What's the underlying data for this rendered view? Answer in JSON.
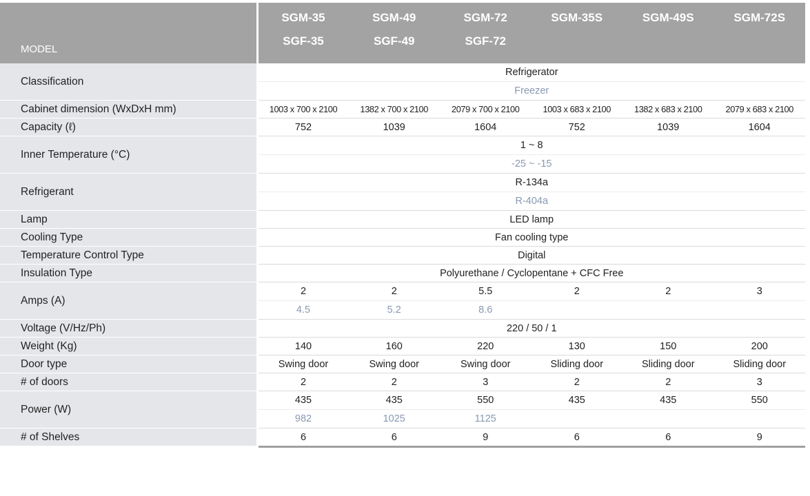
{
  "header": {
    "label": "MODEL",
    "models": [
      "SGM-35",
      "SGM-49",
      "SGM-72",
      "SGM-35S",
      "SGM-49S",
      "SGM-72S"
    ],
    "sub_models": [
      "SGF-35",
      "SGF-49",
      "SGF-72"
    ]
  },
  "rows": {
    "classification": {
      "label": "Classification",
      "refrigerator": "Refrigerator",
      "freezer": "Freezer"
    },
    "cabinet": {
      "label": "Cabinet dimension (WxDxH mm)",
      "values": [
        "1003 x 700 x 2100",
        "1382 x 700 x 2100",
        "2079 x 700 x 2100",
        "1003 x 683 x 2100",
        "1382 x 683 x 2100",
        "2079 x 683 x 2100"
      ]
    },
    "capacity": {
      "label": "Capacity (ℓ)",
      "values": [
        "752",
        "1039",
        "1604",
        "752",
        "1039",
        "1604"
      ]
    },
    "inner_temp": {
      "label": "Inner Temperature (°C)",
      "refrigerator": "1 ~ 8",
      "freezer": "-25 ~ -15"
    },
    "refrigerant": {
      "label": "Refrigerant",
      "refrigerator": "R-134a",
      "freezer": "R-404a"
    },
    "lamp": {
      "label": "Lamp",
      "value": "LED lamp"
    },
    "cooling": {
      "label": "Cooling Type",
      "value": "Fan cooling type"
    },
    "temp_control": {
      "label": "Temperature Control Type",
      "value": "Digital"
    },
    "insulation": {
      "label": "Insulation Type",
      "value": "Polyurethane / Cyclopentane + CFC Free"
    },
    "amps": {
      "label": "Amps (A)",
      "values": [
        "2",
        "2",
        "5.5",
        "2",
        "2",
        "3"
      ],
      "freezer_values": [
        "4.5",
        "5.2",
        "8.6"
      ]
    },
    "voltage": {
      "label": "Voltage (V/Hz/Ph)",
      "value": "220 / 50 / 1"
    },
    "weight": {
      "label": "Weight (Kg)",
      "values": [
        "140",
        "160",
        "220",
        "130",
        "150",
        "200"
      ]
    },
    "door_type": {
      "label": "Door type",
      "values": [
        "Swing door",
        "Swing door",
        "Swing door",
        "Sliding door",
        "Sliding door",
        "Sliding door"
      ]
    },
    "doors": {
      "label": "# of doors",
      "values": [
        "2",
        "2",
        "3",
        "2",
        "2",
        "3"
      ]
    },
    "power": {
      "label": "Power (W)",
      "values": [
        "435",
        "435",
        "550",
        "435",
        "435",
        "550"
      ],
      "freezer_values": [
        "982",
        "1025",
        "1125"
      ]
    },
    "shelves": {
      "label": "# of  Shelves",
      "values": [
        "6",
        "6",
        "9",
        "6",
        "6",
        "9"
      ]
    }
  }
}
